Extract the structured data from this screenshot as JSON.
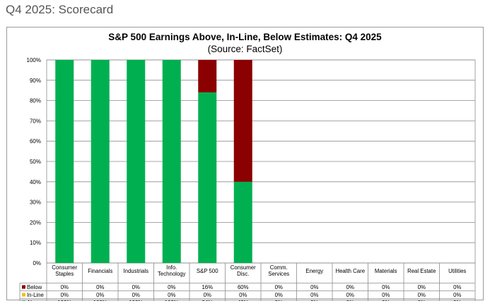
{
  "page": {
    "title": "Q4 2025: Scorecard"
  },
  "chart_data": {
    "type": "bar",
    "stacked": true,
    "title": "S&P 500 Earnings Above, In-Line, Below Estimates: Q4 2025",
    "subtitle": "(Source: FactSet)",
    "categories": [
      [
        "Consumer",
        "Staples"
      ],
      [
        "Financials"
      ],
      [
        "Industrials"
      ],
      [
        "Info.",
        "Technology"
      ],
      [
        "S&P 500"
      ],
      [
        "Consumer",
        "Disc."
      ],
      [
        "Comm.",
        "Services"
      ],
      [
        "Energy"
      ],
      [
        "Health Care"
      ],
      [
        "Materials"
      ],
      [
        "Real Estate"
      ],
      [
        "Utilities"
      ]
    ],
    "series": [
      {
        "name": "Below",
        "color": "#8b0000",
        "values": [
          0,
          0,
          0,
          0,
          16,
          60,
          0,
          0,
          0,
          0,
          0,
          0
        ]
      },
      {
        "name": "In-Line",
        "color": "#f0c020",
        "values": [
          0,
          0,
          0,
          0,
          0,
          0,
          0,
          0,
          0,
          0,
          0,
          0
        ]
      },
      {
        "name": "Above",
        "color": "#00b050",
        "values": [
          100,
          100,
          100,
          100,
          84,
          40,
          0,
          0,
          0,
          0,
          0,
          0
        ]
      }
    ],
    "ylim": [
      0,
      100
    ],
    "yticks": [
      "0%",
      "10%",
      "20%",
      "30%",
      "40%",
      "50%",
      "60%",
      "70%",
      "80%",
      "90%",
      "100%"
    ],
    "value_suffix": "%",
    "grid": true,
    "table_below": true
  }
}
